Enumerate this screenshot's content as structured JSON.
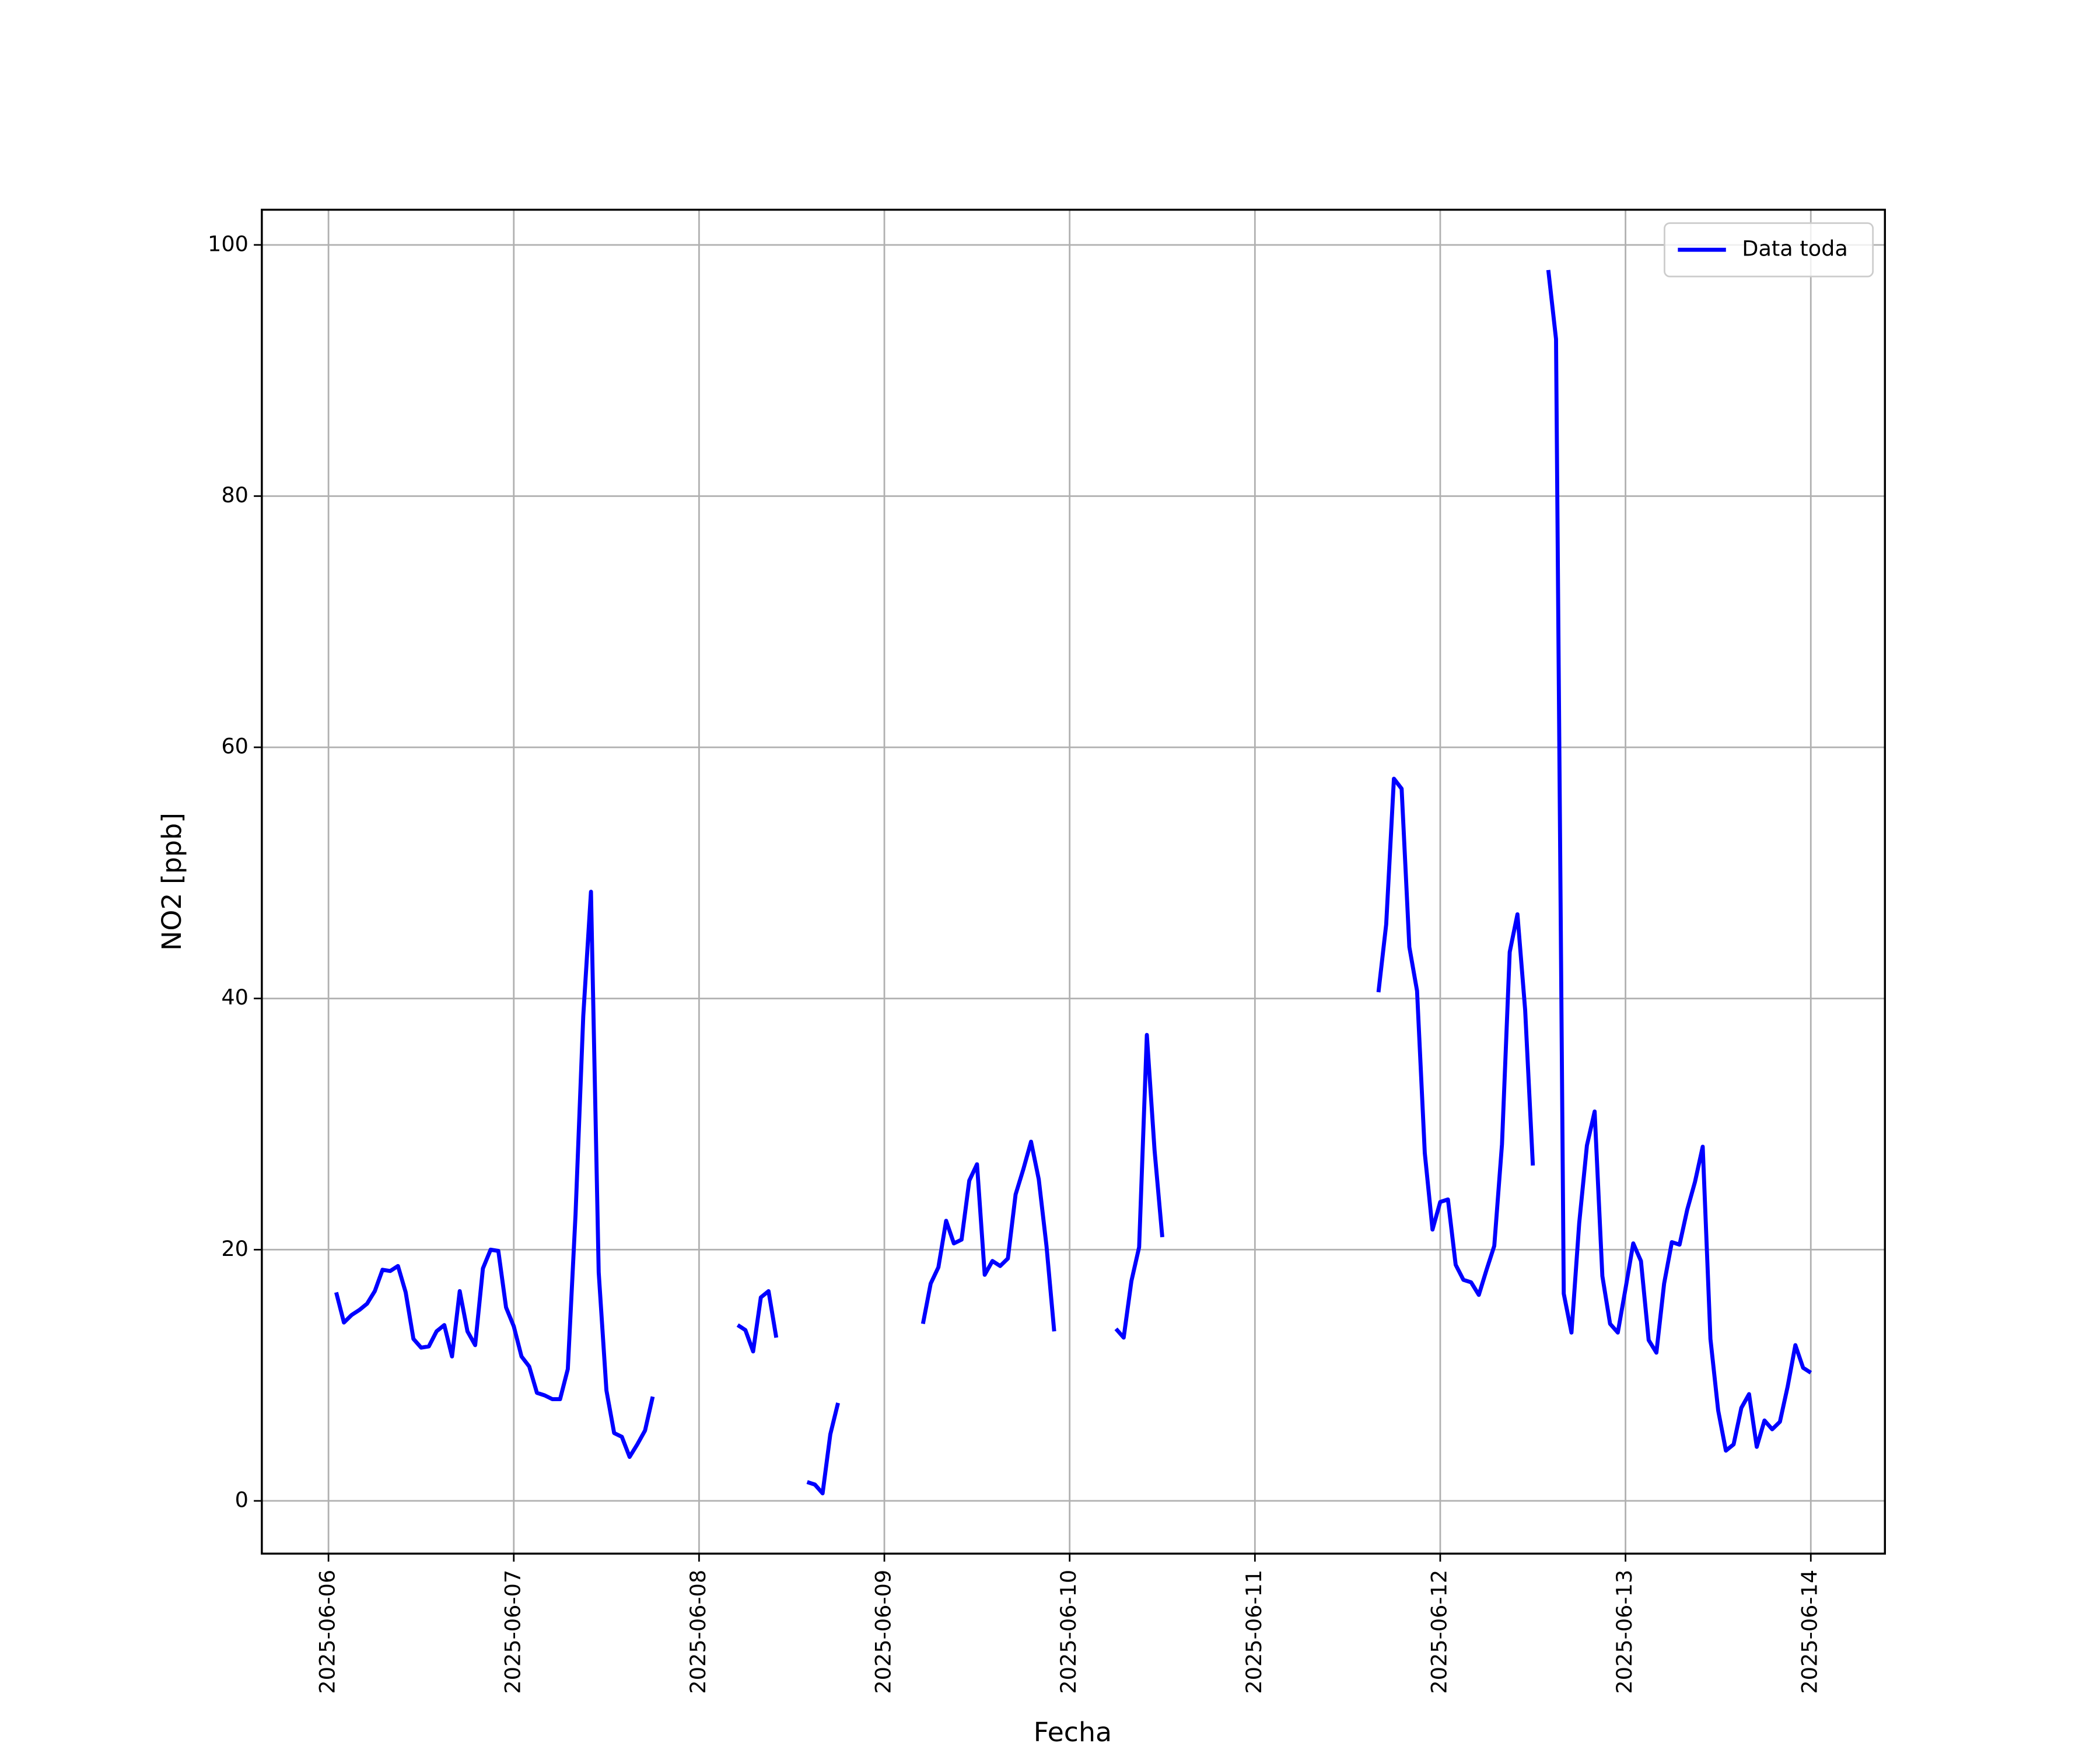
{
  "chart_data": {
    "type": "line",
    "xlabel": "Fecha",
    "ylabel": "NO2 [ppb]",
    "xlim": [
      "2025-06-05 15:22",
      "2025-06-14 09:36"
    ],
    "xticks": [
      "2025-06-06",
      "2025-06-07",
      "2025-06-08",
      "2025-06-09",
      "2025-06-10",
      "2025-06-11",
      "2025-06-12",
      "2025-06-13",
      "2025-06-14"
    ],
    "ylim": [
      -4.2,
      102.8
    ],
    "yticks": [
      0,
      20,
      40,
      60,
      80,
      100
    ],
    "grid": true,
    "legend": "upper right",
    "x": [
      "2025-06-06 01:00",
      "2025-06-06 02:00",
      "2025-06-06 03:00",
      "2025-06-06 04:00",
      "2025-06-06 05:00",
      "2025-06-06 06:00",
      "2025-06-06 07:00",
      "2025-06-06 08:00",
      "2025-06-06 09:00",
      "2025-06-06 10:00",
      "2025-06-06 11:00",
      "2025-06-06 12:00",
      "2025-06-06 13:00",
      "2025-06-06 14:00",
      "2025-06-06 15:00",
      "2025-06-06 16:00",
      "2025-06-06 17:00",
      "2025-06-06 18:00",
      "2025-06-06 19:00",
      "2025-06-06 20:00",
      "2025-06-06 21:00",
      "2025-06-06 22:00",
      "2025-06-06 23:00",
      "2025-06-07 00:00",
      "2025-06-07 01:00",
      "2025-06-07 02:00",
      "2025-06-07 03:00",
      "2025-06-07 04:00",
      "2025-06-07 05:00",
      "2025-06-07 06:00",
      "2025-06-07 07:00",
      "2025-06-07 08:00",
      "2025-06-07 09:00",
      "2025-06-07 10:00",
      "2025-06-07 11:00",
      "2025-06-07 12:00",
      "2025-06-07 13:00",
      "2025-06-07 14:00",
      "2025-06-07 15:00",
      "2025-06-07 16:00",
      "2025-06-07 17:00",
      "2025-06-07 18:00",
      "2025-06-08 02:00",
      "2025-06-08 05:00",
      "2025-06-08 06:00",
      "2025-06-08 07:00",
      "2025-06-08 08:00",
      "2025-06-08 09:00",
      "2025-06-08 10:00",
      "2025-06-08 12:00",
      "2025-06-08 14:00",
      "2025-06-08 15:00",
      "2025-06-08 16:00",
      "2025-06-08 17:00",
      "2025-06-08 18:00",
      "2025-06-08 22:00",
      "2025-06-09 05:00",
      "2025-06-09 06:00",
      "2025-06-09 07:00",
      "2025-06-09 08:00",
      "2025-06-09 09:00",
      "2025-06-09 10:00",
      "2025-06-09 11:00",
      "2025-06-09 12:00",
      "2025-06-09 13:00",
      "2025-06-09 14:00",
      "2025-06-09 15:00",
      "2025-06-09 16:00",
      "2025-06-09 17:00",
      "2025-06-09 18:00",
      "2025-06-09 19:00",
      "2025-06-09 20:00",
      "2025-06-09 21:00",
      "2025-06-09 22:00",
      "2025-06-10 02:00",
      "2025-06-10 06:00",
      "2025-06-10 07:00",
      "2025-06-10 08:00",
      "2025-06-10 09:00",
      "2025-06-10 10:00",
      "2025-06-10 11:00",
      "2025-06-10 12:00",
      "2025-06-11 00:00",
      "2025-06-11 16:00",
      "2025-06-11 17:00",
      "2025-06-11 18:00",
      "2025-06-11 19:00",
      "2025-06-11 20:00",
      "2025-06-11 21:00",
      "2025-06-11 22:00",
      "2025-06-11 23:00",
      "2025-06-12 00:00",
      "2025-06-12 01:00",
      "2025-06-12 02:00",
      "2025-06-12 03:00",
      "2025-06-12 04:00",
      "2025-06-12 05:00",
      "2025-06-12 06:00",
      "2025-06-12 07:00",
      "2025-06-12 08:00",
      "2025-06-12 09:00",
      "2025-06-12 10:00",
      "2025-06-12 11:00",
      "2025-06-12 12:00",
      "2025-06-12 13:00",
      "2025-06-12 14:00",
      "2025-06-12 15:00",
      "2025-06-12 16:00",
      "2025-06-12 17:00",
      "2025-06-12 18:00",
      "2025-06-12 19:00",
      "2025-06-12 20:00",
      "2025-06-12 21:00",
      "2025-06-12 22:00",
      "2025-06-12 23:00",
      "2025-06-13 00:00",
      "2025-06-13 01:00",
      "2025-06-13 02:00",
      "2025-06-13 03:00",
      "2025-06-13 04:00",
      "2025-06-13 05:00",
      "2025-06-13 06:00",
      "2025-06-13 07:00",
      "2025-06-13 08:00",
      "2025-06-13 09:00",
      "2025-06-13 10:00",
      "2025-06-13 11:00",
      "2025-06-13 12:00",
      "2025-06-13 13:00",
      "2025-06-13 14:00",
      "2025-06-13 15:00",
      "2025-06-13 16:00",
      "2025-06-13 17:00",
      "2025-06-13 18:00",
      "2025-06-13 19:00",
      "2025-06-13 20:00",
      "2025-06-13 21:00",
      "2025-06-13 22:00",
      "2025-06-13 23:00",
      "2025-06-14 00:00"
    ],
    "series": [
      {
        "name": "Data toda",
        "color": "#0000ff",
        "values": [
          16.6,
          14.2,
          14.8,
          15.2,
          15.7,
          16.7,
          18.4,
          18.3,
          18.7,
          16.6,
          12.9,
          12.2,
          12.3,
          13.5,
          14.0,
          11.5,
          16.7,
          13.5,
          12.4,
          18.5,
          20.0,
          19.9,
          15.4,
          13.9,
          11.5,
          10.7,
          8.6,
          8.4,
          8.1,
          8.1,
          10.5,
          22.8,
          38.6,
          48.5,
          18.2,
          8.8,
          5.4,
          5.1,
          3.5,
          4.5,
          5.6,
          8.3,
          null,
          14.0,
          13.6,
          11.9,
          16.2,
          16.7,
          13.0,
          null,
          1.5,
          1.3,
          0.6,
          5.3,
          7.8,
          null,
          14.1,
          17.3,
          18.6,
          22.3,
          20.5,
          20.8,
          25.5,
          26.8,
          18.0,
          19.1,
          18.7,
          19.3,
          24.4,
          26.4,
          28.6,
          25.6,
          20.3,
          13.5,
          null,
          13.7,
          13.0,
          17.5,
          20.2,
          37.1,
          27.9,
          21.0,
          null,
          40.5,
          45.9,
          57.5,
          56.7,
          44.1,
          40.6,
          27.7,
          21.6,
          23.8,
          24.0,
          18.8,
          17.6,
          17.4,
          16.4,
          18.4,
          20.3,
          28.4,
          43.7,
          46.7,
          39.1,
          26.7,
          null,
          98.0,
          92.5,
          16.5,
          13.4,
          22.1,
          28.3,
          31.0,
          17.9,
          14.1,
          13.4,
          16.9,
          20.5,
          19.1,
          12.8,
          11.8,
          17.3,
          20.6,
          20.4,
          23.2,
          25.4,
          28.2,
          12.9,
          7.2,
          4.0,
          4.5,
          7.4,
          8.5,
          4.3,
          6.4,
          5.7,
          6.3,
          9.1,
          12.4,
          10.6,
          10.2
        ]
      }
    ]
  }
}
